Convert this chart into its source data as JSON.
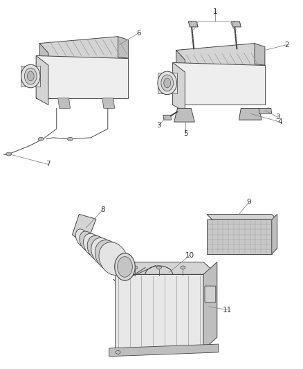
{
  "background_color": "#ffffff",
  "line_color": "#444444",
  "light_line": "#888888",
  "text_color": "#333333",
  "fig_width": 4.38,
  "fig_height": 5.33,
  "dpi": 100,
  "label_fs": 7.5,
  "callout_lw": 0.6,
  "part_lw": 0.7,
  "shade_color": "#d4d4d4",
  "mid_shade": "#bebebe",
  "dark_shade": "#999999"
}
